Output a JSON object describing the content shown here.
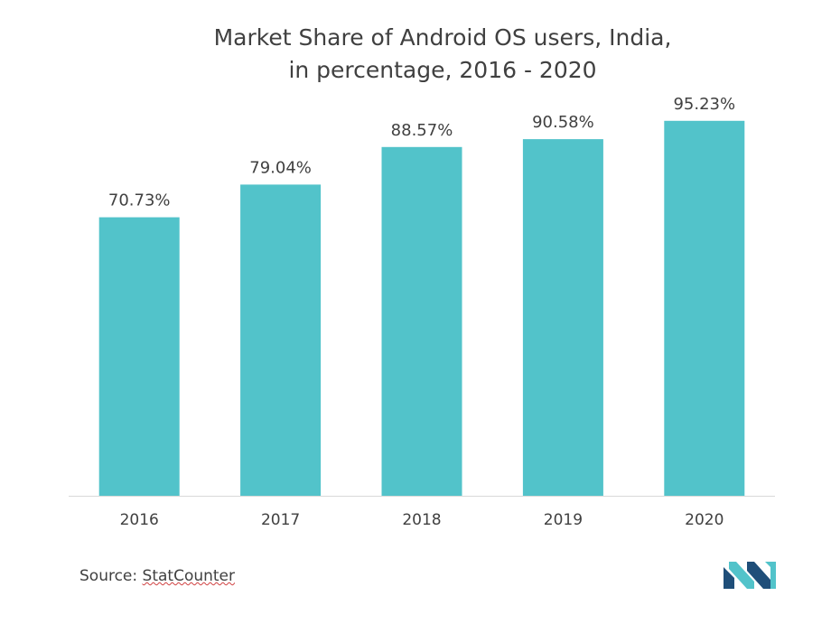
{
  "title_line_1": "Market Share of Android OS users, India,",
  "title_line_2": "in percentage, 2016 - 2020",
  "source_prefix": "Source: ",
  "source_name": "StatCounter",
  "colors": {
    "bar": "#52c3ca",
    "axis": "#d9d9d9",
    "text": "#404040",
    "logo_dark": "#1f4e79",
    "logo_light": "#52c3ca"
  },
  "chart_data": {
    "type": "bar",
    "categories": [
      "2016",
      "2017",
      "2018",
      "2019",
      "2020"
    ],
    "values": [
      70.73,
      79.04,
      88.57,
      90.58,
      95.23
    ],
    "data_labels": [
      "70.73%",
      "79.04%",
      "88.57%",
      "90.58%",
      "95.23%"
    ],
    "title": "Market Share of Android OS users, India, in percentage, 2016 - 2020",
    "xlabel": "",
    "ylabel": "",
    "ylim": [
      0,
      100
    ],
    "grid": false,
    "legend": "none"
  }
}
